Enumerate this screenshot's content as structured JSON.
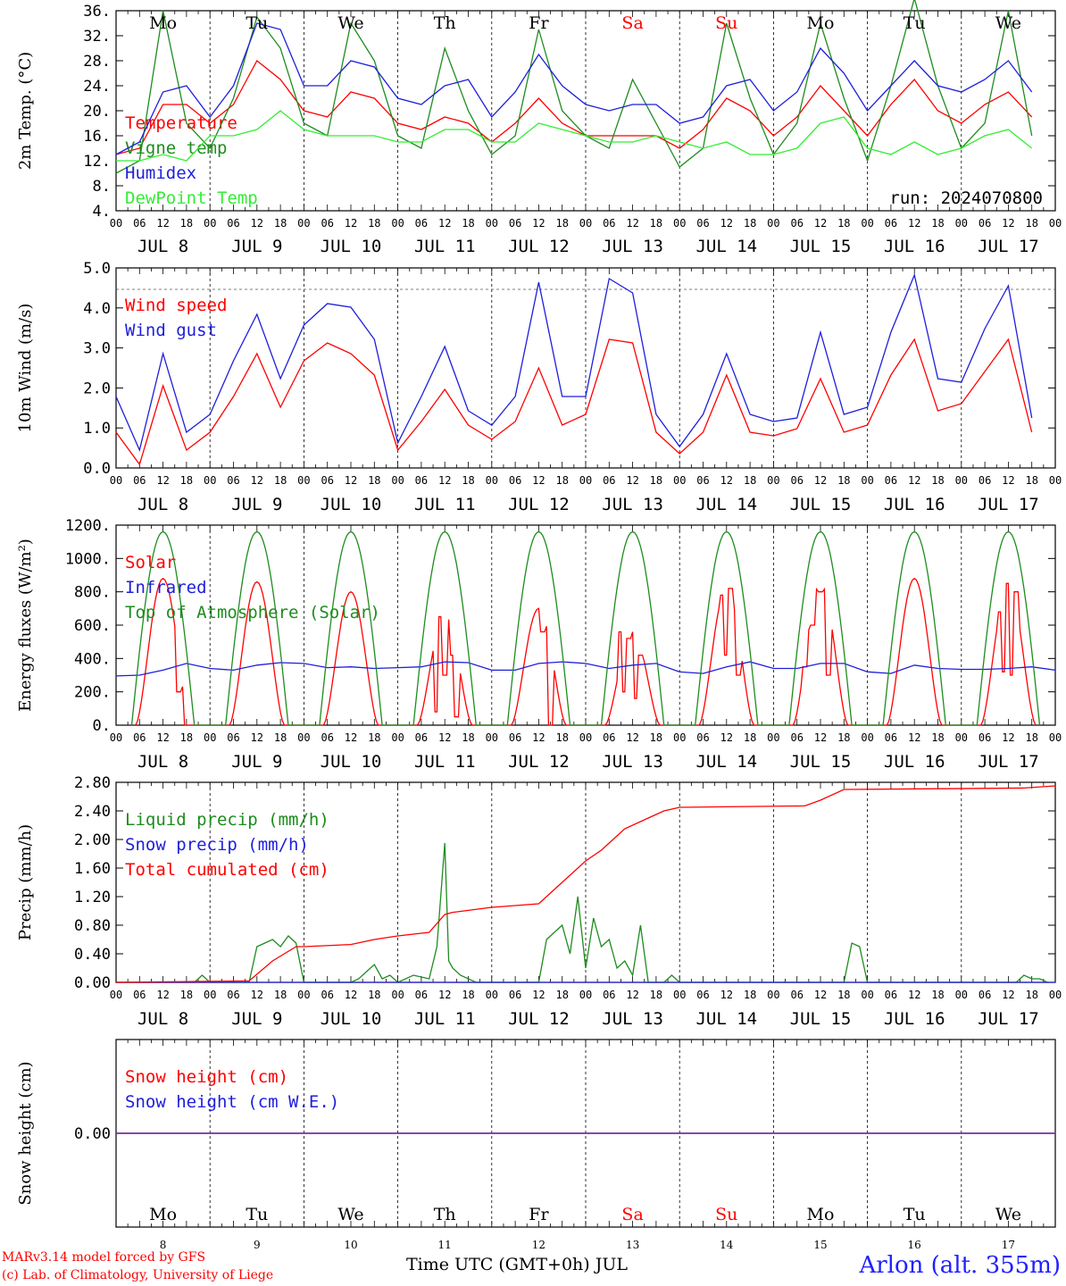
{
  "run_label": "run: 2024070800",
  "footer": {
    "model": "MARv3.14 model forced by GFS",
    "lab": "(c) Lab. of Climatology, University of Liege",
    "x_title": "Time UTC (GMT+0h) JUL",
    "station": "Arlon (alt. 355m)"
  },
  "days": [
    "Mo",
    "Tu",
    "We",
    "Th",
    "Fr",
    "Sa",
    "Su",
    "Mo",
    "Tu",
    "We"
  ],
  "weekend_days": [
    5,
    6
  ],
  "date_numbers": [
    "8",
    "9",
    "10",
    "11",
    "12",
    "13",
    "14",
    "15",
    "16",
    "17"
  ],
  "date_labels": [
    "JUL  8",
    "JUL  9",
    "JUL 10",
    "JUL 11",
    "JUL 12",
    "JUL 13",
    "JUL 14",
    "JUL 15",
    "JUL 16",
    "JUL 17"
  ],
  "hour_ticks": [
    "00",
    "06",
    "12",
    "18"
  ],
  "colors": {
    "red": "#ff0000",
    "green": "#1e8c1e",
    "blue": "#1e1edc",
    "lime": "#33ee33",
    "purple": "#7030a0"
  },
  "chart_data": [
    {
      "type": "line",
      "ylabel": "2m Temp. (°C)",
      "ylim": [
        4,
        36
      ],
      "yticks": [
        "4.",
        "8.",
        "12.",
        "16.",
        "20.",
        "24.",
        "28.",
        "32.",
        "36."
      ],
      "x_unit": "hours since 2024-07-08 00 UTC",
      "legend": "top-left",
      "series": [
        {
          "name": "Temperature",
          "color": "red",
          "x": [
            0,
            6,
            12,
            18,
            24,
            30,
            36,
            42,
            48,
            54,
            60,
            66,
            72,
            78,
            84,
            90,
            96,
            102,
            108,
            114,
            120,
            126,
            132,
            138,
            144,
            150,
            156,
            162,
            168,
            174,
            180,
            186,
            192,
            198,
            204,
            210,
            216,
            222,
            228,
            234
          ],
          "y": [
            13,
            14,
            21,
            21,
            18,
            21,
            28,
            25,
            20,
            19,
            23,
            22,
            18,
            17,
            19,
            18,
            15,
            18,
            22,
            18,
            16,
            16,
            16,
            16,
            14,
            17,
            22,
            20,
            16,
            19,
            24,
            20,
            16,
            21,
            25,
            20,
            18,
            21,
            23,
            19
          ]
        },
        {
          "name": "Vigne temp",
          "color": "green",
          "x": [
            0,
            6,
            12,
            18,
            24,
            30,
            36,
            42,
            48,
            54,
            60,
            66,
            72,
            78,
            84,
            90,
            96,
            102,
            108,
            114,
            120,
            126,
            132,
            138,
            144,
            150,
            156,
            162,
            168,
            174,
            180,
            186,
            192,
            198,
            204,
            210,
            216,
            222,
            228,
            234
          ],
          "y": [
            10,
            12,
            36,
            18,
            14,
            22,
            35,
            30,
            18,
            16,
            34,
            28,
            16,
            14,
            30,
            20,
            13,
            16,
            33,
            20,
            16,
            14,
            25,
            18,
            11,
            14,
            34,
            22,
            13,
            18,
            34,
            22,
            12,
            24,
            38,
            24,
            14,
            18,
            36,
            16
          ]
        },
        {
          "name": "Humidex",
          "color": "blue",
          "x": [
            0,
            6,
            12,
            18,
            24,
            30,
            36,
            42,
            48,
            54,
            60,
            66,
            72,
            78,
            84,
            90,
            96,
            102,
            108,
            114,
            120,
            126,
            132,
            138,
            144,
            150,
            156,
            162,
            168,
            174,
            180,
            186,
            192,
            198,
            204,
            210,
            216,
            222,
            228,
            234
          ],
          "y": [
            13,
            15,
            23,
            24,
            19,
            24,
            34,
            33,
            24,
            24,
            28,
            27,
            22,
            21,
            24,
            25,
            19,
            23,
            29,
            24,
            21,
            20,
            21,
            21,
            18,
            19,
            24,
            25,
            20,
            23,
            30,
            26,
            20,
            24,
            28,
            24,
            23,
            25,
            28,
            23
          ]
        },
        {
          "name": "DewPoint Temp",
          "color": "lime",
          "x": [
            0,
            6,
            12,
            18,
            24,
            30,
            36,
            42,
            48,
            54,
            60,
            66,
            72,
            78,
            84,
            90,
            96,
            102,
            108,
            114,
            120,
            126,
            132,
            138,
            144,
            150,
            156,
            162,
            168,
            174,
            180,
            186,
            192,
            198,
            204,
            210,
            216,
            222,
            228,
            234
          ],
          "y": [
            12,
            12,
            13,
            12,
            16,
            16,
            17,
            20,
            17,
            16,
            16,
            16,
            15,
            15,
            17,
            17,
            15,
            15,
            18,
            17,
            16,
            15,
            15,
            16,
            15,
            14,
            15,
            13,
            13,
            14,
            18,
            19,
            14,
            13,
            15,
            13,
            14,
            16,
            17,
            14
          ]
        }
      ]
    },
    {
      "type": "line",
      "ylabel": "10m Wind (m/s)",
      "ylim": [
        0,
        5.6
      ],
      "yticks": [
        "0.0",
        "1.0",
        "2.0",
        "3.0",
        "4.0",
        "5.0"
      ],
      "dashed_y": 5.0,
      "legend": "top-left",
      "series": [
        {
          "name": "Wind speed",
          "color": "red",
          "x": [
            0,
            6,
            12,
            18,
            24,
            30,
            36,
            42,
            48,
            54,
            60,
            66,
            72,
            78,
            84,
            90,
            96,
            102,
            108,
            114,
            120,
            126,
            132,
            138,
            144,
            150,
            156,
            162,
            168,
            174,
            180,
            186,
            192,
            198,
            204,
            210,
            216,
            222,
            228,
            234
          ],
          "y": [
            1.0,
            0.1,
            2.3,
            0.5,
            1.0,
            2.0,
            3.2,
            1.7,
            3.0,
            3.5,
            3.2,
            2.6,
            0.5,
            1.3,
            2.2,
            1.2,
            0.8,
            1.3,
            2.8,
            1.2,
            1.5,
            3.6,
            3.5,
            1.0,
            0.4,
            1.0,
            2.6,
            1.0,
            0.9,
            1.1,
            2.5,
            1.0,
            1.2,
            2.6,
            3.6,
            1.6,
            1.8,
            2.7,
            3.6,
            1.0
          ]
        },
        {
          "name": "Wind gust",
          "color": "blue",
          "x": [
            0,
            6,
            12,
            18,
            24,
            30,
            36,
            42,
            48,
            54,
            60,
            66,
            72,
            78,
            84,
            90,
            96,
            102,
            108,
            114,
            120,
            126,
            132,
            138,
            144,
            150,
            156,
            162,
            168,
            174,
            180,
            186,
            192,
            198,
            204,
            210,
            216,
            222,
            228,
            234
          ],
          "y": [
            2.0,
            0.5,
            3.2,
            1.0,
            1.5,
            3.0,
            4.3,
            2.5,
            4.0,
            4.6,
            4.5,
            3.6,
            0.7,
            2.0,
            3.4,
            1.6,
            1.2,
            2.0,
            5.2,
            2.0,
            2.0,
            5.3,
            4.9,
            1.5,
            0.6,
            1.5,
            3.2,
            1.5,
            1.3,
            1.4,
            3.8,
            1.5,
            1.7,
            3.8,
            5.4,
            2.5,
            2.4,
            3.9,
            5.1,
            1.4
          ]
        }
      ]
    },
    {
      "type": "line",
      "ylabel": "Energy fluxes (W/m²)",
      "ylim": [
        0,
        1200
      ],
      "yticks": [
        "0.",
        "200.",
        "400.",
        "600.",
        "800.",
        "1000.",
        "1200."
      ],
      "legend": "top-left",
      "series": [
        {
          "name": "Solar",
          "color": "red",
          "days_peak": [
            880,
            860,
            800,
            660,
            700,
            560,
            820,
            850,
            880,
            840
          ],
          "days_dips": [
            [
              [
                16,
                200
              ],
              [
                18,
                0
              ]
            ],
            [],
            [],
            [
              [
                10,
                80
              ],
              [
                11,
                650
              ],
              [
                12,
                300
              ],
              [
                14,
                420
              ],
              [
                15,
                50
              ]
            ],
            [
              [
                13,
                560
              ],
              [
                15,
                0
              ]
            ],
            [
              [
                9,
                560
              ],
              [
                10,
                200
              ],
              [
                11,
                520
              ],
              [
                13,
                160
              ],
              [
                14,
                420
              ]
            ],
            [
              [
                11,
                780
              ],
              [
                12,
                420
              ],
              [
                13,
                820
              ],
              [
                15,
                300
              ]
            ],
            [
              [
                8,
                350
              ],
              [
                10,
                600
              ],
              [
                12,
                800
              ],
              [
                14,
                300
              ]
            ],
            [],
            [
              [
                10,
                680
              ],
              [
                11,
                320
              ],
              [
                12,
                850
              ],
              [
                13,
                300
              ],
              [
                14,
                800
              ]
            ]
          ]
        },
        {
          "name": "Infrared",
          "color": "blue",
          "x": [
            0,
            6,
            12,
            18,
            24,
            30,
            36,
            42,
            48,
            54,
            60,
            66,
            72,
            78,
            84,
            90,
            96,
            102,
            108,
            114,
            120,
            126,
            132,
            138,
            144,
            150,
            156,
            162,
            168,
            174,
            180,
            186,
            192,
            198,
            204,
            210,
            216,
            222,
            228,
            234,
            240
          ],
          "y": [
            295,
            300,
            330,
            370,
            340,
            330,
            360,
            375,
            370,
            345,
            350,
            340,
            345,
            350,
            380,
            375,
            330,
            330,
            370,
            380,
            370,
            340,
            360,
            370,
            320,
            310,
            350,
            380,
            340,
            340,
            370,
            370,
            320,
            310,
            360,
            340,
            335,
            335,
            340,
            350,
            330
          ]
        },
        {
          "name": "Top of Atmosphere (Solar)",
          "color": "green",
          "daily_peak": 1160,
          "day_start": 4,
          "day_end": 20
        }
      ]
    },
    {
      "type": "line",
      "ylabel": "Precip (mm/h)",
      "ylim": [
        0,
        2.8
      ],
      "yticks": [
        "0.00",
        "0.40",
        "0.80",
        "1.20",
        "1.60",
        "2.00",
        "2.40",
        "2.80"
      ],
      "legend": "top-left",
      "series": [
        {
          "name": "Liquid precip (mm/h)",
          "color": "green",
          "x": [
            0,
            20,
            22,
            24,
            34,
            36,
            38,
            40,
            42,
            44,
            46,
            48,
            50,
            60,
            62,
            64,
            66,
            68,
            70,
            72,
            76,
            80,
            82,
            84,
            85,
            86,
            88,
            92,
            96,
            108,
            110,
            112,
            114,
            116,
            118,
            120,
            122,
            124,
            126,
            128,
            130,
            132,
            134,
            136,
            140,
            142,
            144,
            150,
            152,
            154,
            186,
            188,
            190,
            192,
            230,
            232,
            234,
            236,
            238
          ],
          "y": [
            0,
            0,
            0.1,
            0,
            0,
            0.5,
            0.55,
            0.6,
            0.5,
            0.65,
            0.55,
            0,
            0,
            0,
            0.05,
            0.15,
            0.25,
            0.05,
            0.1,
            0,
            0.1,
            0.05,
            0.5,
            1.95,
            0.3,
            0.2,
            0.1,
            0,
            0,
            0,
            0.6,
            0.7,
            0.8,
            0.4,
            1.2,
            0.2,
            0.9,
            0.5,
            0.6,
            0.2,
            0.3,
            0.1,
            0.8,
            0,
            0,
            0.1,
            0,
            0,
            0,
            0,
            0,
            0.55,
            0.5,
            0,
            0,
            0.1,
            0.05,
            0.05,
            0
          ]
        },
        {
          "name": "Snow precip (mm/h)",
          "color": "blue",
          "x": [
            0,
            240
          ],
          "y": [
            0,
            0
          ]
        },
        {
          "name": "Total cumulated (cm)",
          "color": "red",
          "x": [
            0,
            34,
            40,
            46,
            48,
            60,
            66,
            72,
            80,
            84,
            86,
            96,
            108,
            112,
            116,
            120,
            124,
            126,
            130,
            136,
            140,
            144,
            176,
            180,
            186,
            232,
            240
          ],
          "y": [
            0,
            0.02,
            0.3,
            0.5,
            0.5,
            0.53,
            0.6,
            0.65,
            0.7,
            0.95,
            0.98,
            1.05,
            1.1,
            1.3,
            1.5,
            1.7,
            1.85,
            1.95,
            2.15,
            2.3,
            2.4,
            2.45,
            2.47,
            2.55,
            2.7,
            2.72,
            2.75
          ]
        }
      ]
    },
    {
      "type": "line",
      "ylabel": "Snow height (cm)",
      "ylim": [
        -1,
        1
      ],
      "yticks": [
        "0.00"
      ],
      "legend": "top-left",
      "series": [
        {
          "name": "Snow height (cm)",
          "color": "red",
          "x": [
            0,
            240
          ],
          "y": [
            0,
            0
          ]
        },
        {
          "name": "Snow height (cm W.E.)",
          "color": "blue",
          "x": [
            0,
            240
          ],
          "y": [
            0,
            0
          ]
        }
      ]
    }
  ]
}
